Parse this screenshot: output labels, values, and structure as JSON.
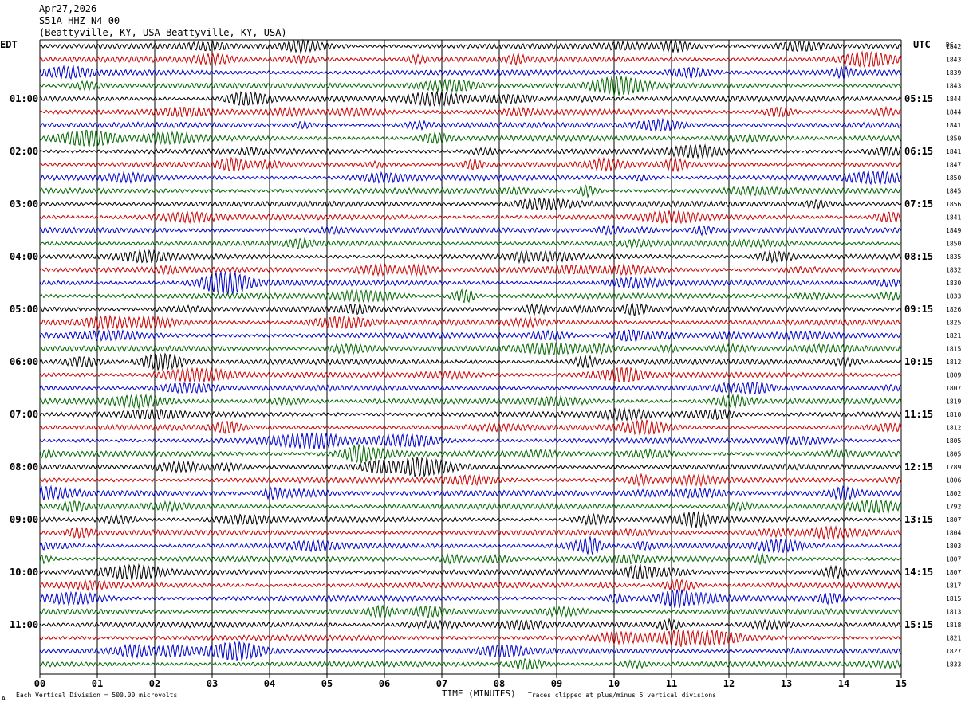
{
  "header": {
    "date": "Apr27,2026",
    "station": "S51A HHZ N4 00",
    "location": "(Beattyville, KY, USA Beattyville, KY, USA)"
  },
  "labels": {
    "left_tz": "EDT",
    "right_tz": "UTC",
    "dc_header": "DC",
    "xlabel": "TIME (MINUTES)",
    "scale_note": "Each Vertical Division =  500.00 microvolts",
    "clip_note": "Traces clipped at plus/minus 5 vertical divisions",
    "corner_mark": "A"
  },
  "colors": {
    "trace_cycle": [
      "#000000",
      "#cc0000",
      "#0000cc",
      "#006600"
    ],
    "grid": "#000000",
    "background": "#ffffff"
  },
  "chart_data": {
    "type": "line",
    "title": "S51A HHZ N4 00",
    "xlabel": "TIME (MINUTES)",
    "x_ticks": [
      "00",
      "01",
      "02",
      "03",
      "04",
      "05",
      "06",
      "07",
      "08",
      "09",
      "10",
      "11",
      "12",
      "13",
      "14",
      "15"
    ],
    "xlim": [
      0,
      15
    ],
    "traces_per_hour": 4,
    "minutes_per_trace": 15,
    "left_hour_labels": [
      "01:00",
      "02:00",
      "03:00",
      "04:00",
      "05:00",
      "06:00",
      "07:00",
      "08:00",
      "09:00",
      "10:00",
      "11:00"
    ],
    "right_hour_labels": [
      "05:15",
      "06:15",
      "07:15",
      "08:15",
      "09:15",
      "10:15",
      "11:15",
      "12:15",
      "13:15",
      "14:15",
      "15:15"
    ],
    "dc_offsets": [
      1842,
      1843,
      1839,
      1843,
      1844,
      1844,
      1841,
      1850,
      1841,
      1847,
      1850,
      1845,
      1856,
      1841,
      1849,
      1850,
      1835,
      1832,
      1830,
      1833,
      1826,
      1825,
      1821,
      1815,
      1812,
      1809,
      1807,
      1819,
      1810,
      1812,
      1805,
      1805,
      1789,
      1806,
      1802,
      1792,
      1807,
      1804,
      1803,
      1807,
      1807,
      1817,
      1815,
      1813,
      1818,
      1821,
      1827,
      1833
    ],
    "trace_count": 48
  }
}
